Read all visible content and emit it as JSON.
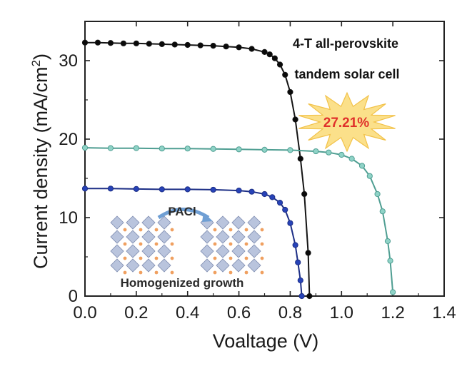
{
  "chart_data": {
    "type": "line",
    "xlabel": "Voaltage (V)",
    "ylabel": "Current density (mA/cm",
    "ylabel_superscript": "2",
    "ylabel_suffix": ")",
    "xlim": [
      0,
      1.4
    ],
    "ylim": [
      0,
      35
    ],
    "x_ticks": [
      "0.0",
      "0.2",
      "0.4",
      "0.6",
      "0.8",
      "1.0",
      "1.2",
      "1.4"
    ],
    "y_ticks": [
      "0",
      "10",
      "20",
      "30"
    ],
    "x_tick_values": [
      0,
      0.2,
      0.4,
      0.6,
      0.8,
      1.0,
      1.2,
      1.4
    ],
    "y_tick_values": [
      0,
      10,
      20,
      30
    ],
    "grid": false,
    "series": [
      {
        "color": "#141414",
        "fill": "#0a0a0a",
        "points": [
          [
            0,
            32.3
          ],
          [
            0.05,
            32.3
          ],
          [
            0.1,
            32.25
          ],
          [
            0.15,
            32.2
          ],
          [
            0.2,
            32.2
          ],
          [
            0.25,
            32.15
          ],
          [
            0.3,
            32.1
          ],
          [
            0.35,
            32.05
          ],
          [
            0.4,
            32.0
          ],
          [
            0.45,
            31.95
          ],
          [
            0.5,
            31.9
          ],
          [
            0.55,
            31.8
          ],
          [
            0.6,
            31.7
          ],
          [
            0.65,
            31.5
          ],
          [
            0.7,
            31.1
          ],
          [
            0.72,
            30.8
          ],
          [
            0.74,
            30.3
          ],
          [
            0.76,
            29.5
          ],
          [
            0.78,
            28.2
          ],
          [
            0.8,
            26.0
          ],
          [
            0.82,
            22.5
          ],
          [
            0.84,
            17.5
          ],
          [
            0.855,
            13.0
          ],
          [
            0.87,
            5.5
          ],
          [
            0.875,
            0
          ]
        ]
      },
      {
        "color": "#4f9e92",
        "fill": "#8fd3c7",
        "points": [
          [
            0,
            18.9
          ],
          [
            0.1,
            18.85
          ],
          [
            0.2,
            18.85
          ],
          [
            0.3,
            18.8
          ],
          [
            0.4,
            18.8
          ],
          [
            0.5,
            18.75
          ],
          [
            0.6,
            18.7
          ],
          [
            0.7,
            18.65
          ],
          [
            0.8,
            18.6
          ],
          [
            0.9,
            18.45
          ],
          [
            0.95,
            18.3
          ],
          [
            1.0,
            18.0
          ],
          [
            1.04,
            17.5
          ],
          [
            1.08,
            16.6
          ],
          [
            1.11,
            15.3
          ],
          [
            1.14,
            13.0
          ],
          [
            1.16,
            10.8
          ],
          [
            1.18,
            7.0
          ],
          [
            1.19,
            4.5
          ],
          [
            1.2,
            0.5
          ]
        ]
      },
      {
        "color": "#1d2f86",
        "fill": "#2743b8",
        "points": [
          [
            0,
            13.7
          ],
          [
            0.1,
            13.7
          ],
          [
            0.2,
            13.65
          ],
          [
            0.3,
            13.6
          ],
          [
            0.4,
            13.6
          ],
          [
            0.5,
            13.55
          ],
          [
            0.6,
            13.45
          ],
          [
            0.65,
            13.3
          ],
          [
            0.7,
            13.0
          ],
          [
            0.73,
            12.6
          ],
          [
            0.76,
            11.9
          ],
          [
            0.78,
            11.0
          ],
          [
            0.8,
            9.3
          ],
          [
            0.82,
            6.5
          ],
          [
            0.83,
            4.3
          ],
          [
            0.84,
            2.0
          ],
          [
            0.845,
            0
          ]
        ]
      }
    ],
    "annotations": {
      "title_line1": "4-T all-perovskite",
      "title_line2": "tandem solar cell",
      "efficiency": "27.21%",
      "inset_arrow_label": "PACl",
      "inset_caption": "Homogenized growth"
    }
  }
}
